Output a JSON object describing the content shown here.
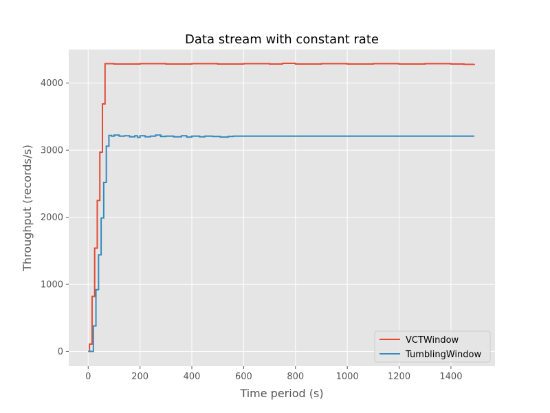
{
  "chart_data": {
    "type": "line",
    "title": "Data stream with constant rate",
    "xlabel": "Time period (s)",
    "ylabel": "Throughput (records/s)",
    "xlim": [
      -75,
      1570
    ],
    "ylim": [
      -220,
      4500
    ],
    "xticks": [
      0,
      200,
      400,
      600,
      800,
      1000,
      1200,
      1400
    ],
    "yticks": [
      0,
      1000,
      2000,
      3000,
      4000
    ],
    "grid": true,
    "legend_position": "lower-right",
    "series": [
      {
        "name": "VCTWindow",
        "color": "#E24A33",
        "x": [
          0,
          5,
          10,
          15,
          20,
          25,
          30,
          35,
          40,
          45,
          50,
          55,
          60,
          65,
          80,
          100,
          150,
          200,
          300,
          400,
          500,
          600,
          700,
          750,
          800,
          900,
          1000,
          1100,
          1200,
          1300,
          1400,
          1450,
          1490
        ],
        "y": [
          0,
          110,
          110,
          820,
          820,
          1540,
          1540,
          2250,
          2250,
          2970,
          2970,
          3690,
          3690,
          4290,
          4290,
          4285,
          4285,
          4290,
          4285,
          4290,
          4285,
          4290,
          4285,
          4295,
          4285,
          4290,
          4285,
          4290,
          4285,
          4290,
          4285,
          4280,
          4285
        ]
      },
      {
        "name": "TumblingWindow",
        "color": "#348ABD",
        "x": [
          0,
          10,
          15,
          20,
          25,
          30,
          35,
          40,
          45,
          50,
          55,
          60,
          65,
          70,
          80,
          90,
          100,
          120,
          140,
          160,
          180,
          190,
          200,
          220,
          240,
          260,
          280,
          300,
          330,
          360,
          380,
          400,
          430,
          450,
          480,
          510,
          540,
          560,
          600,
          800,
          1000,
          1200,
          1400,
          1490
        ],
        "y": [
          0,
          0,
          0,
          380,
          380,
          920,
          920,
          1440,
          1440,
          1990,
          1990,
          2520,
          2520,
          3060,
          3220,
          3210,
          3225,
          3210,
          3215,
          3200,
          3215,
          3190,
          3215,
          3200,
          3210,
          3225,
          3205,
          3210,
          3200,
          3215,
          3195,
          3210,
          3200,
          3210,
          3205,
          3195,
          3205,
          3210,
          3210,
          3210,
          3210,
          3210,
          3210,
          3210
        ]
      }
    ]
  }
}
